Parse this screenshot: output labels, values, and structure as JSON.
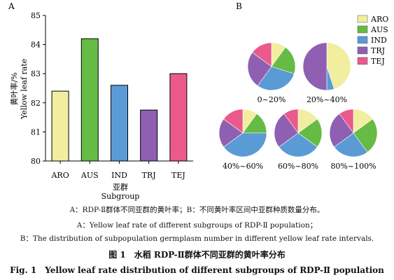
{
  "panel_labels": {
    "a": "A",
    "b": "B"
  },
  "chart_data": [
    {
      "type": "bar",
      "title": "",
      "ylabel_cn": "黄叶率/%",
      "ylabel_en": "Yellow leaf rate",
      "xlabel_cn": "亚群",
      "xlabel_en": "Subgroup",
      "categories": [
        "ARO",
        "AUS",
        "IND",
        "TRJ",
        "TEJ"
      ],
      "values": [
        82.4,
        84.2,
        82.6,
        81.75,
        83.0
      ],
      "colors": [
        "#f2eea0",
        "#66bb44",
        "#5b9bd5",
        "#8f5fb2",
        "#ea5a8a"
      ],
      "ylim": [
        80,
        85
      ],
      "yticks": [
        80,
        81,
        82,
        83,
        84,
        85
      ],
      "grid": false
    },
    {
      "type": "pie",
      "legend": [
        "ARO",
        "AUS",
        "IND",
        "TRJ",
        "TEJ"
      ],
      "legend_position": "right",
      "colors": [
        "#f2eea0",
        "#66bb44",
        "#5b9bd5",
        "#8f5fb2",
        "#ea5a8a"
      ],
      "pies": [
        {
          "label": "0~20%",
          "values": [
            10,
            20,
            30,
            25,
            15
          ]
        },
        {
          "label": "20%~40%",
          "values": [
            45,
            0,
            5,
            50,
            0
          ]
        },
        {
          "label": "40%~60%",
          "values": [
            10,
            15,
            40,
            20,
            15
          ]
        },
        {
          "label": "60%~80%",
          "values": [
            15,
            20,
            30,
            25,
            10
          ]
        },
        {
          "label": "80%~100%",
          "values": [
            15,
            25,
            25,
            25,
            10
          ]
        }
      ]
    }
  ],
  "caption": {
    "line1": "A：RDP-Ⅱ群体不同亚群的黄叶率；B：不同黄叶率区间中亚群种质数量分布。",
    "line2": "A：Yellow leaf rate of different subgroups of RDP-Ⅱ population；",
    "line3": "B：The distribution of subpopulation germplasm number in different yellow leaf rate intervals.",
    "line4": "图 1　水稻 RDP-Ⅱ群体不同亚群的黄叶率分布",
    "line5": "Fig. 1　Yellow leaf rate distribution of different subgroups of RDP-Ⅱ population"
  }
}
